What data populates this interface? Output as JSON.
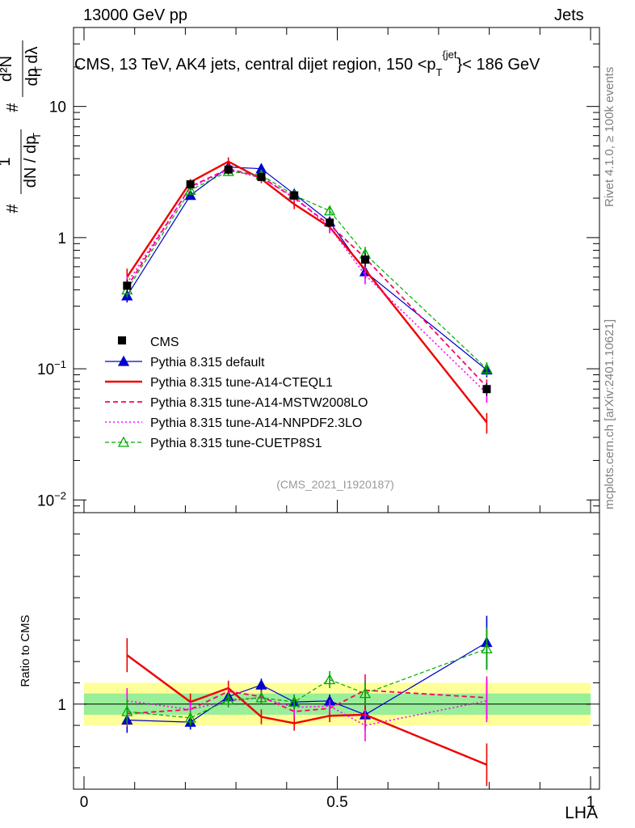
{
  "header": {
    "energy": "13000 GeV pp",
    "process": "Jets"
  },
  "side": {
    "rivet": "Rivet 4.1.0, ≥ 100k events",
    "mcplots": "mcplots.cern.ch [arXiv:2401.10621]"
  },
  "chart_data": {
    "type": "line",
    "title": "CMS, 13 TeV, AK4 jets, central dijet region, 150 <p_T^{jet}< 186 GeV",
    "title_parts": {
      "pre": "CMS, 13 TeV, AK4 jets, central dijet region, 150 <p",
      "sub": "T",
      "sup": "{jet",
      "post": "}< 186 GeV"
    },
    "xlabel": "LHA",
    "ylabel_main": "1/N dN/dp_T dλ (# d²N / # dp_T dλ)",
    "ylabel_ratio": "Ratio to CMS",
    "watermark": "(CMS_2021_I1920187)",
    "xlim": [
      0,
      1
    ],
    "ylim_main": [
      0.008,
      40
    ],
    "ylim_ratio": [
      0.2,
      2.8
    ],
    "x_ticks": [
      {
        "value": 0,
        "label": "0"
      },
      {
        "value": 0.5,
        "label": "0.5"
      },
      {
        "value": 1,
        "label": "1"
      }
    ],
    "y_ticks_main": [
      {
        "value": 0.01,
        "base": "10",
        "exp": "−2"
      },
      {
        "value": 0.1,
        "base": "10",
        "exp": "−1"
      },
      {
        "value": 1,
        "base": "1",
        "exp": ""
      },
      {
        "value": 10,
        "base": "10",
        "exp": ""
      }
    ],
    "y_ticks_ratio": [
      {
        "value": 1,
        "label": "1"
      }
    ],
    "bins": [
      {
        "x": 0.085,
        "lo": 0.0,
        "hi": 0.17
      },
      {
        "x": 0.21,
        "lo": 0.17,
        "hi": 0.25
      },
      {
        "x": 0.285,
        "lo": 0.25,
        "hi": 0.32
      },
      {
        "x": 0.35,
        "lo": 0.32,
        "hi": 0.38
      },
      {
        "x": 0.415,
        "lo": 0.38,
        "hi": 0.45
      },
      {
        "x": 0.485,
        "lo": 0.45,
        "hi": 0.52
      },
      {
        "x": 0.555,
        "lo": 0.52,
        "hi": 0.59
      },
      {
        "x": 0.795,
        "lo": 0.59,
        "hi": 1.0
      }
    ],
    "data": {
      "name": "CMS",
      "y": [
        0.43,
        2.55,
        3.3,
        2.9,
        2.1,
        1.3,
        0.68,
        0.07
      ],
      "err": [
        0.05,
        0.2,
        0.25,
        0.2,
        0.15,
        0.1,
        0.08,
        0.008
      ],
      "band_stat": [
        0.1,
        0.1,
        0.1,
        0.1,
        0.1,
        0.1,
        0.1,
        0.1
      ],
      "band_total": [
        0.2,
        0.2,
        0.2,
        0.2,
        0.2,
        0.2,
        0.2,
        0.2
      ]
    },
    "series": [
      {
        "name": "Pythia 8.315 default",
        "color": "#0000cc",
        "dash": "",
        "width": 1.2,
        "marker": "triangle-filled",
        "y": [
          0.36,
          2.1,
          3.45,
          3.35,
          2.15,
          1.32,
          0.55,
          0.098
        ],
        "err": [
          0.04,
          0.12,
          0.2,
          0.2,
          0.12,
          0.1,
          0.06,
          0.012
        ],
        "ratio": [
          0.85,
          0.83,
          1.07,
          1.18,
          1.02,
          1.03,
          0.9,
          1.58
        ],
        "ratio_err": [
          0.12,
          0.07,
          0.06,
          0.06,
          0.07,
          0.06,
          0.12,
          0.25
        ]
      },
      {
        "name": "Pythia 8.315 tune-A14-CTEQL1",
        "color": "#ee0000",
        "dash": "",
        "width": 2.4,
        "marker": "",
        "y": [
          0.5,
          2.65,
          3.8,
          2.8,
          1.8,
          1.2,
          0.57,
          0.039
        ],
        "err": [
          0.08,
          0.15,
          0.3,
          0.2,
          0.15,
          0.12,
          0.08,
          0.007
        ],
        "ratio": [
          1.46,
          1.02,
          1.15,
          0.88,
          0.82,
          0.89,
          0.9,
          0.43
        ],
        "ratio_err": [
          0.16,
          0.08,
          0.07,
          0.07,
          0.07,
          0.06,
          0.15,
          0.2
        ]
      },
      {
        "name": "Pythia 8.315 tune-A14-MSTW2008LO",
        "color": "#ff0066",
        "dash": "6,4",
        "width": 1.8,
        "marker": "",
        "y": [
          0.42,
          2.45,
          3.35,
          2.9,
          2.0,
          1.25,
          0.7,
          0.073
        ],
        "err": [
          0.06,
          0.15,
          0.25,
          0.2,
          0.15,
          0.12,
          0.1,
          0.01
        ],
        "ratio": [
          0.91,
          0.95,
          1.12,
          1.07,
          0.93,
          0.96,
          1.13,
          1.06
        ],
        "ratio_err": [
          0.12,
          0.07,
          0.06,
          0.06,
          0.07,
          0.06,
          0.15,
          0.2
        ]
      },
      {
        "name": "Pythia 8.315 tune-A14-NNPDF2.3LO",
        "color": "#ff00ff",
        "dash": "2,3",
        "width": 1.6,
        "marker": "",
        "y": [
          0.45,
          2.4,
          3.3,
          2.85,
          2.05,
          1.2,
          0.52,
          0.065
        ],
        "err": [
          0.06,
          0.15,
          0.25,
          0.2,
          0.15,
          0.12,
          0.08,
          0.01
        ],
        "ratio": [
          1.03,
          0.95,
          1.03,
          1.06,
          0.97,
          0.98,
          0.8,
          1.03
        ],
        "ratio_err": [
          0.12,
          0.07,
          0.06,
          0.06,
          0.07,
          0.06,
          0.15,
          0.2
        ]
      },
      {
        "name": "Pythia 8.315 tune-CUETP8S1",
        "color": "#00aa00",
        "dash": "5,3",
        "width": 1.2,
        "marker": "triangle-open",
        "y": [
          0.4,
          2.3,
          3.2,
          3.0,
          2.1,
          1.6,
          0.75,
          0.1
        ],
        "err": [
          0.05,
          0.15,
          0.2,
          0.2,
          0.12,
          0.12,
          0.1,
          0.012
        ],
        "ratio": [
          0.93,
          0.87,
          1.04,
          1.06,
          1.02,
          1.23,
          1.1,
          1.52
        ],
        "ratio_err": [
          0.12,
          0.07,
          0.06,
          0.06,
          0.07,
          0.08,
          0.12,
          0.2
        ]
      }
    ]
  }
}
